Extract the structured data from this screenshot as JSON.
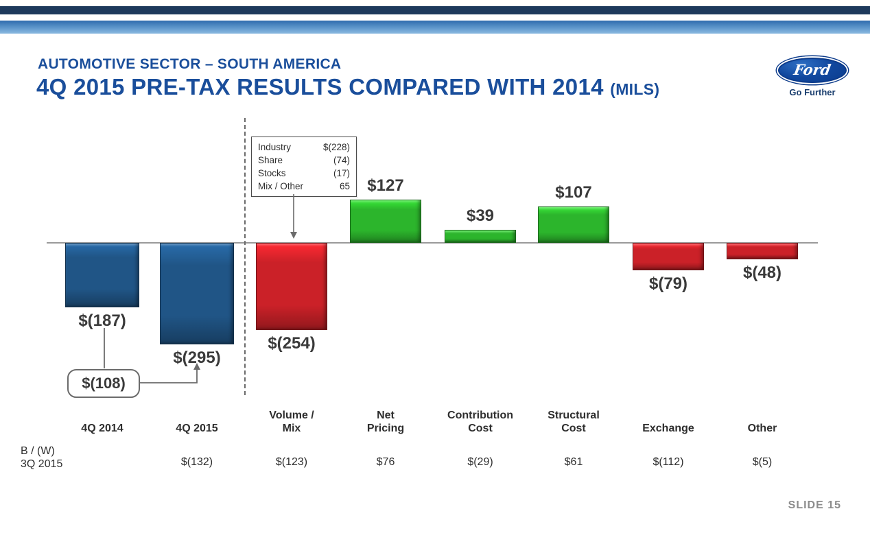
{
  "slide": {
    "kicker": "AUTOMOTIVE SECTOR – SOUTH AMERICA",
    "title": "4Q 2015 PRE-TAX RESULTS COMPARED WITH 2014",
    "title_suffix": "(MILS)",
    "slide_number": "SLIDE 15",
    "logo": {
      "brand": "Ford",
      "tagline": "Go Further"
    }
  },
  "chart_data": {
    "type": "bar",
    "title": "4Q 2015 Pre-Tax Results Compared With 2014 (Mils)",
    "unit": "$ millions",
    "ylim": [
      -300,
      150
    ],
    "zero_line": true,
    "grid": false,
    "categories": [
      "4Q 2014",
      "4Q 2015",
      "Volume /\nMix",
      "Net\nPricing",
      "Contribution\nCost",
      "Structural\nCost",
      "Exchange",
      "Other"
    ],
    "values": [
      -187,
      -295,
      -254,
      127,
      39,
      107,
      -79,
      -48
    ],
    "labels": [
      "$(187)",
      "$(295)",
      "$(254)",
      "$127",
      "$39",
      "$107",
      "$(79)",
      "$(48)"
    ],
    "bar_colors": [
      "#205586",
      "#205586",
      "#CB2128",
      "#2CB52C",
      "#2CB52C",
      "#2CB52C",
      "#CB2128",
      "#CB2128"
    ],
    "delta_callout": {
      "label": "$(108)",
      "from": "4Q 2014",
      "to": "4Q 2015"
    },
    "memo": {
      "points_to": "Volume / Mix",
      "rows": [
        {
          "label": "Industry",
          "value": "$(228)"
        },
        {
          "label": "Share",
          "value": "(74)"
        },
        {
          "label": "Stocks",
          "value": "(17)"
        },
        {
          "label": "Mix / Other",
          "value": "65"
        }
      ]
    },
    "bottom_row": {
      "label_line1": "B / (W)",
      "label_line2": "3Q 2015",
      "values": [
        "",
        "$(132)",
        "$(123)",
        "$76",
        "$(29)",
        "$61",
        "$(112)",
        "$(5)"
      ]
    }
  }
}
